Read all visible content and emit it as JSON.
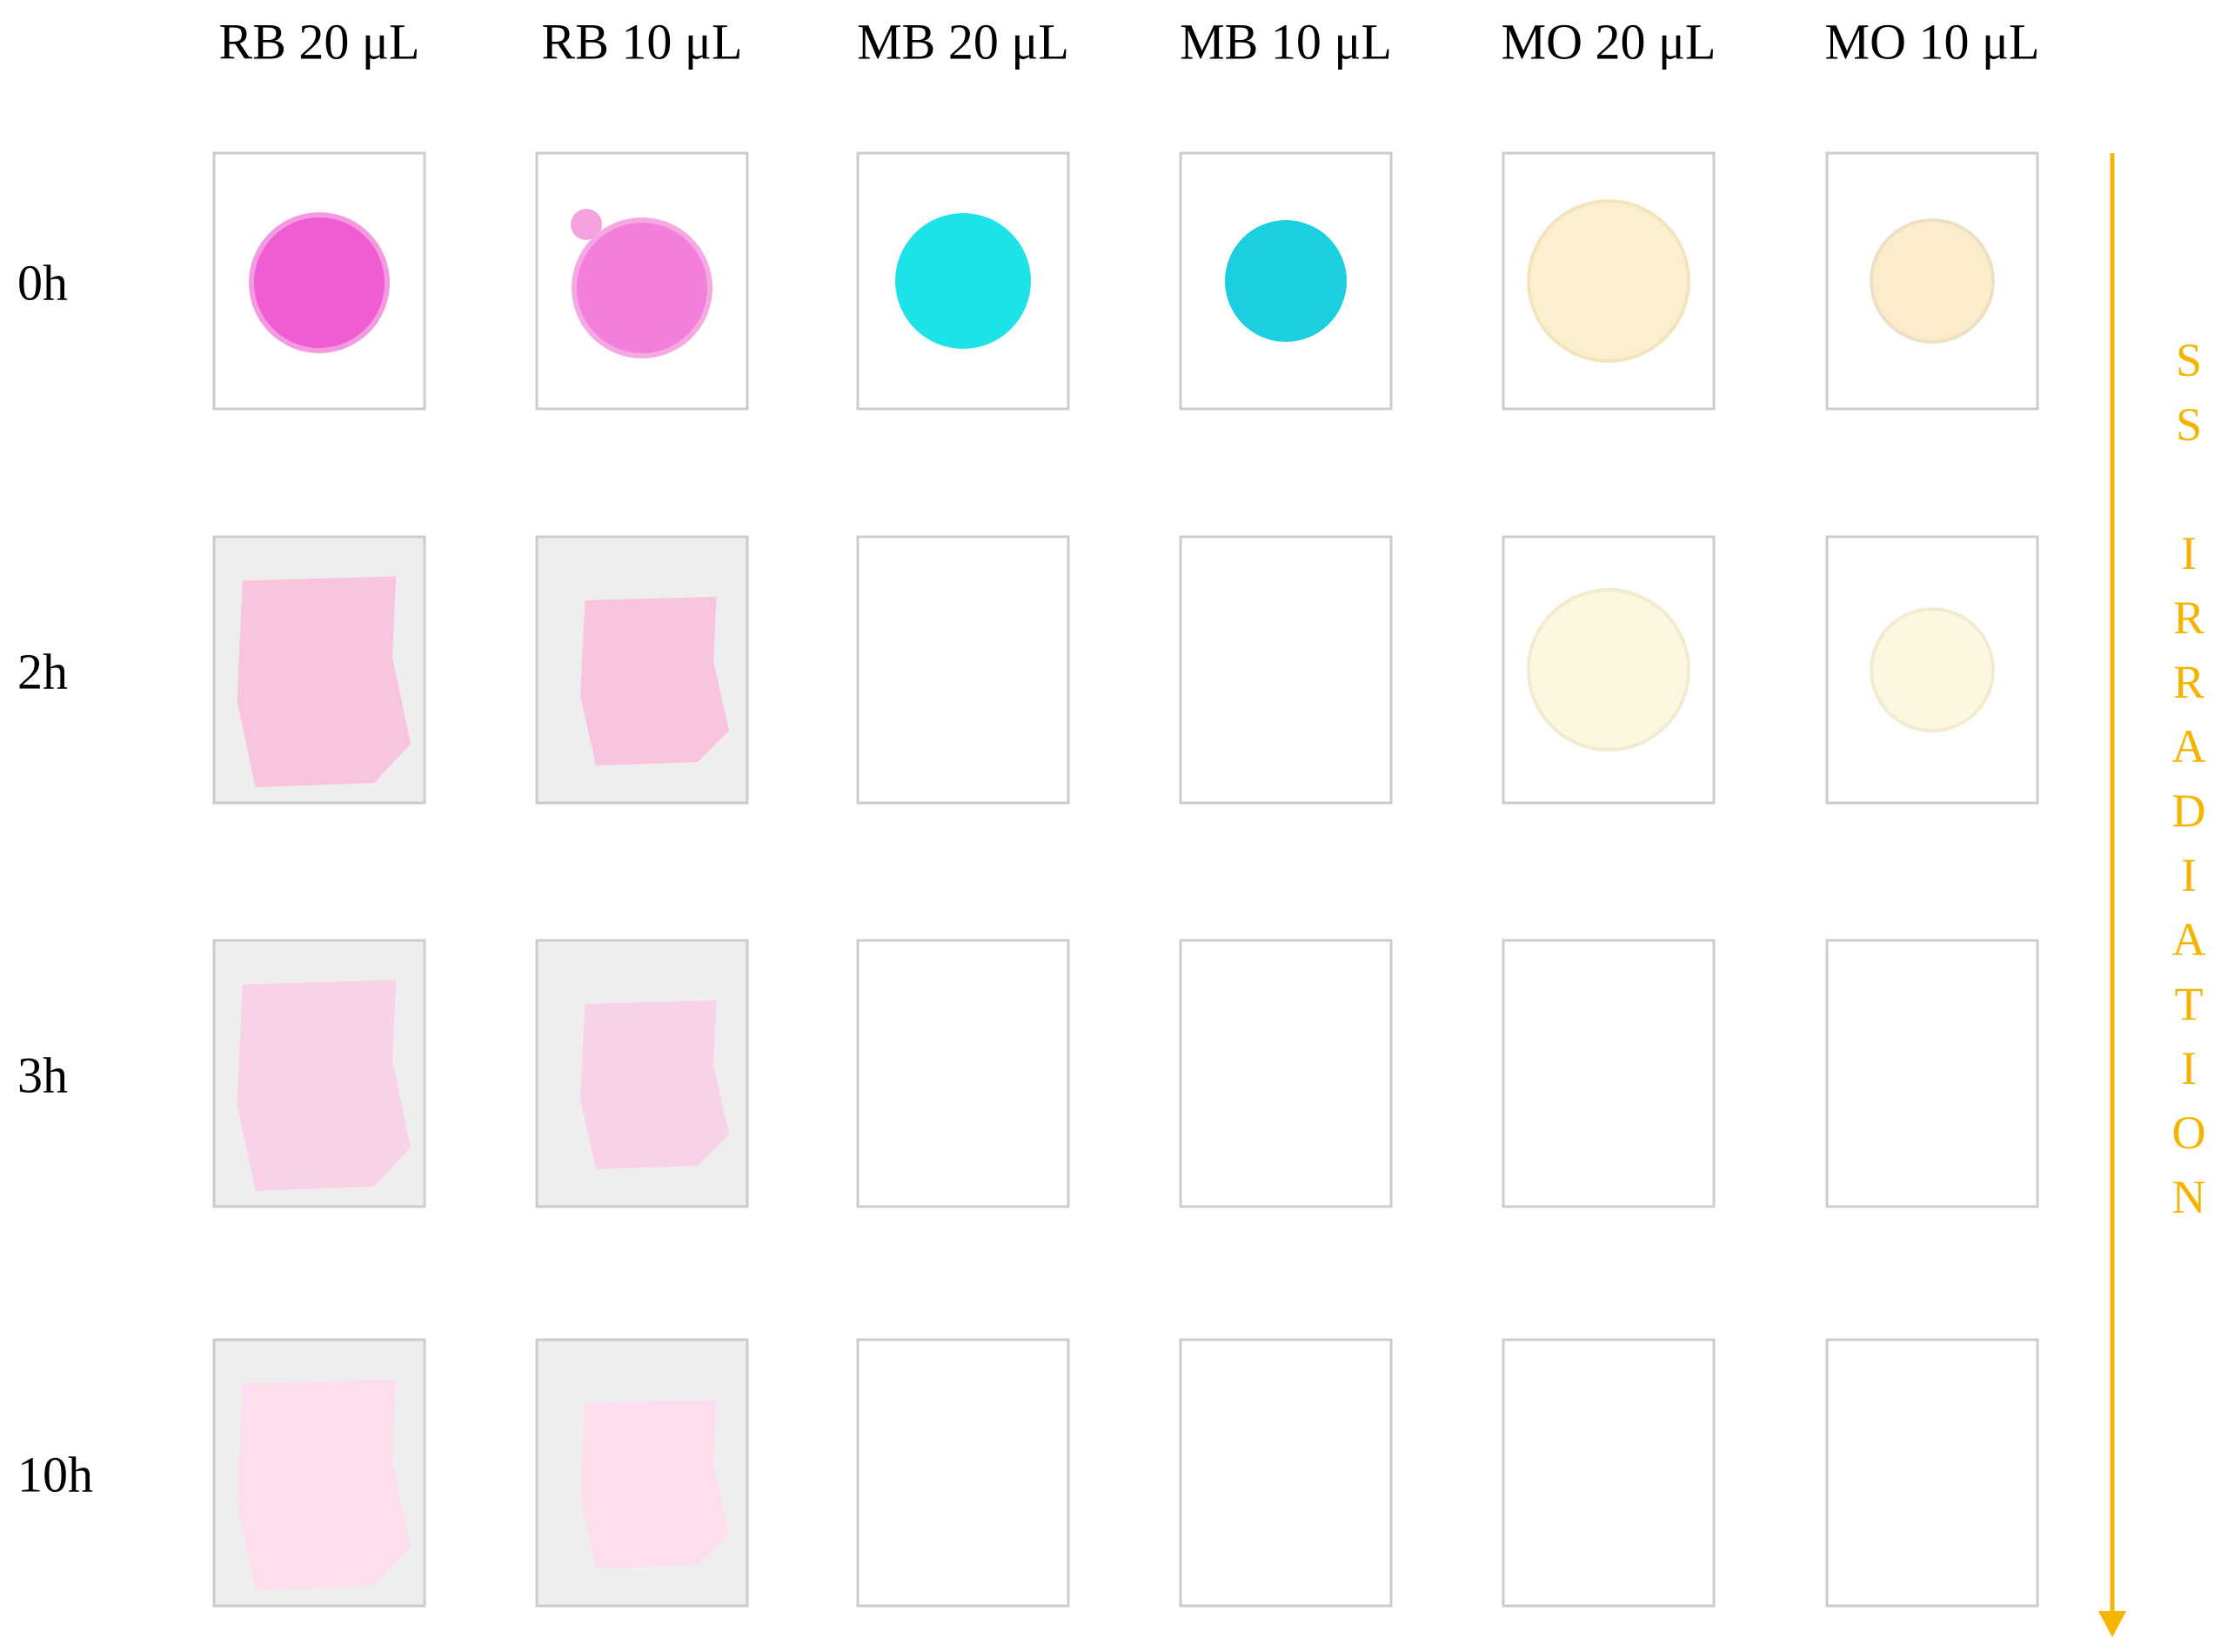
{
  "columns": [
    "RB 20 μL",
    "RB 10 μL",
    "MB 20 μL",
    "MB 10 μL",
    "MO 20 μL",
    "MO 10 μL"
  ],
  "rows": [
    "0h",
    "2h",
    "3h",
    "10h"
  ],
  "side_label": "SS IRRADIATION"
}
